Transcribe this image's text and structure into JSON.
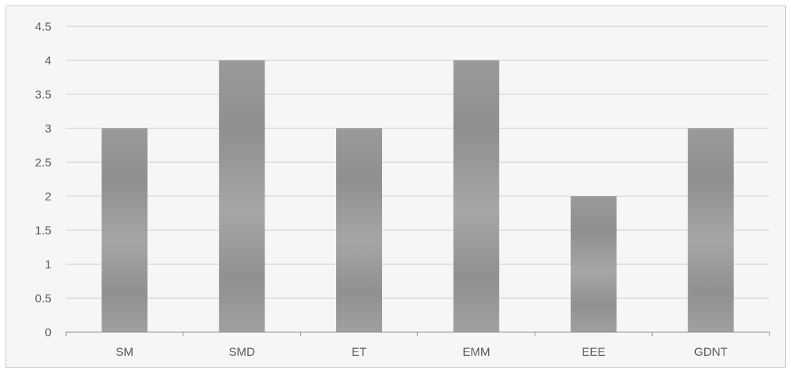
{
  "chart_data": {
    "type": "bar",
    "categories": [
      "SM",
      "SMD",
      "ET",
      "EMM",
      "EEE",
      "GDNT"
    ],
    "values": [
      3,
      4,
      3,
      4,
      2,
      3
    ],
    "title": "",
    "xlabel": "",
    "ylabel": "",
    "ylim": [
      0,
      4.5
    ],
    "yticks": [
      "0",
      "0.5",
      "1",
      "1.5",
      "2",
      "2.5",
      "3",
      "3.5",
      "4",
      "4.5"
    ],
    "grid": true,
    "legend": "none",
    "colors": {
      "bar": "#999999",
      "bar_light": "#a8a8a8",
      "bar_dark": "#8e8e8e",
      "grid": "#c9c9c9",
      "axis": "#888888",
      "background": "#f6f6f6"
    }
  }
}
